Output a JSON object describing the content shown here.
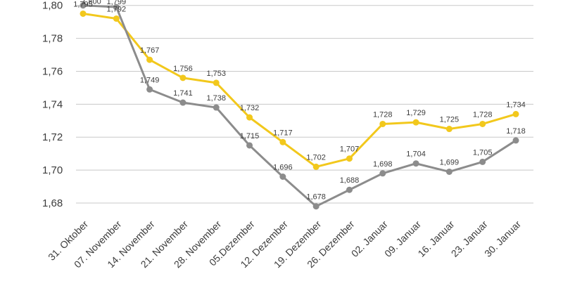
{
  "chart_data": {
    "type": "line",
    "title": "",
    "xlabel": "",
    "ylabel": "",
    "categories": [
      "31. Oktober",
      "07. November",
      "14. November",
      "21. November",
      "28. November",
      "05.Dezember",
      "12. Dezember",
      "19. Dezember",
      "26. Dezember",
      "02. Januar",
      "09. Januar",
      "16. Januar",
      "23. Januar",
      "30. Januar"
    ],
    "ylim": [
      1.672,
      1.8
    ],
    "yticks": [
      1.68,
      1.7,
      1.72,
      1.74,
      1.76,
      1.78,
      1.8
    ],
    "ytick_labels": [
      "1,68",
      "1,70",
      "1,72",
      "1,74",
      "1,76",
      "1,78",
      "1,80"
    ],
    "grid": true,
    "series": [
      {
        "name": "yellow",
        "color": "#f2c81c",
        "values": [
          1.795,
          1.792,
          1.767,
          1.756,
          1.753,
          1.732,
          1.717,
          1.702,
          1.707,
          1.728,
          1.729,
          1.725,
          1.728,
          1.734
        ],
        "labels": [
          "1,795",
          "1,792",
          "1,767",
          "1,756",
          "1,753",
          "1,732",
          "1,717",
          "1,702",
          "1,707",
          "1,728",
          "1,729",
          "1,725",
          "1,728",
          "1,734"
        ]
      },
      {
        "name": "gray",
        "color": "#8c8c8c",
        "values": [
          1.8,
          1.799,
          1.749,
          1.741,
          1.738,
          1.715,
          1.696,
          1.678,
          1.688,
          1.698,
          1.704,
          1.699,
          1.705,
          1.718
        ],
        "labels": [
          "1,800",
          "1,799",
          "1,749",
          "1,741",
          "1,738",
          "1,715",
          "1,696",
          "1,678",
          "1,688",
          "1,698",
          "1,704",
          "1,699",
          "1,705",
          "1,718"
        ]
      }
    ]
  }
}
